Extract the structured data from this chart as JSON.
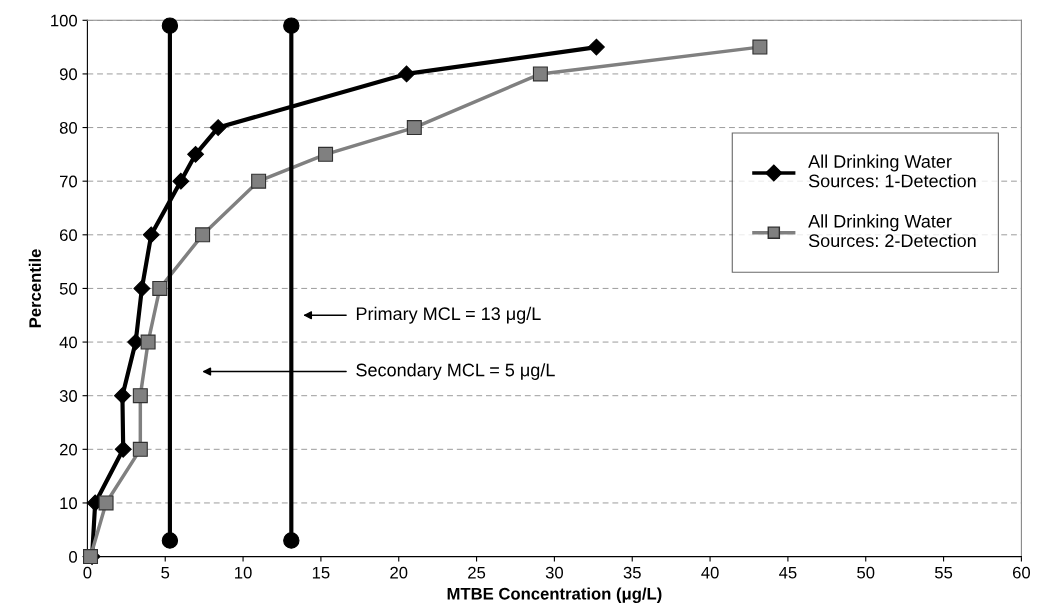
{
  "chart_data": {
    "type": "line",
    "xlabel": "MTBE Concentration (μg/L)",
    "ylabel": "Percentile",
    "xlim": [
      0,
      60
    ],
    "xticks": [
      0,
      5,
      10,
      15,
      20,
      25,
      30,
      35,
      40,
      45,
      50,
      55,
      60
    ],
    "ylim": [
      0,
      100
    ],
    "yticks": [
      0,
      10,
      20,
      30,
      40,
      50,
      60,
      70,
      80,
      90,
      100
    ],
    "grid": "y",
    "legend": "right",
    "series": [
      {
        "name": "All Drinking Water Sources: 1-Detection",
        "color": "#000000",
        "marker": "diamond",
        "x": [
          0.3,
          0.5,
          2.3,
          2.25,
          3.1,
          3.5,
          4.1,
          6.0,
          6.95,
          8.4,
          20.5,
          32.7
        ],
        "values": [
          0,
          10,
          20,
          30,
          40,
          50,
          60,
          70,
          75,
          80,
          90,
          95
        ]
      },
      {
        "name": "All Drinking Water Sources: 2-Detection",
        "color": "#808080",
        "marker": "square",
        "x": [
          0.2,
          1.2,
          3.4,
          3.4,
          3.9,
          4.65,
          7.4,
          11.0,
          15.3,
          21.0,
          29.1,
          43.2
        ],
        "values": [
          0,
          10,
          20,
          30,
          40,
          50,
          60,
          70,
          75,
          80,
          90,
          95
        ]
      },
      {
        "color": "#000000",
        "marker": "circle",
        "x": [
          5.3,
          5.3
        ],
        "values": [
          3,
          99
        ]
      },
      {
        "color": "#000000",
        "marker": "circle",
        "x": [
          13.1,
          13.1
        ],
        "values": [
          3,
          99
        ]
      }
    ],
    "annotations": [
      "Primary MCL = 13 μg/L",
      "Secondary MCL = 5 μg/L"
    ]
  }
}
